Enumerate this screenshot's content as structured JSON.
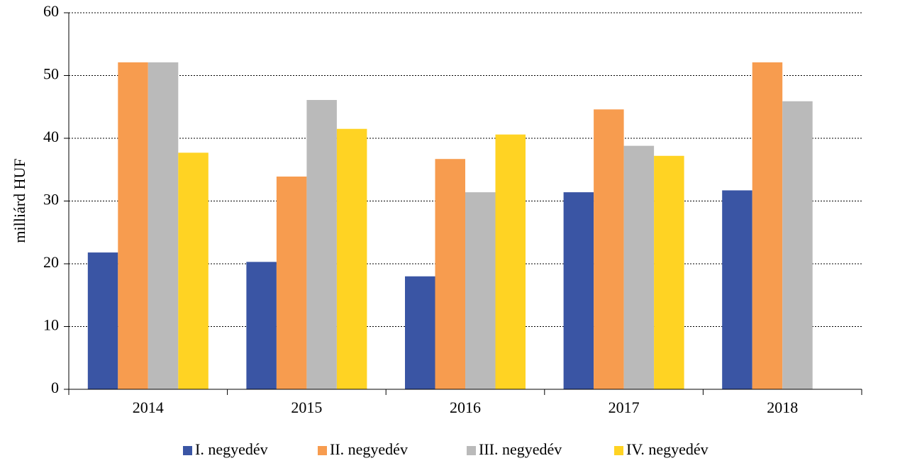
{
  "chart_data": {
    "type": "bar",
    "y_label": "milliárd HUF",
    "categories": [
      "2014",
      "2015",
      "2016",
      "2017",
      "2018"
    ],
    "series": [
      {
        "name": "I. negyedév",
        "color": "#3a55a4",
        "values": [
          21.8,
          20.3,
          18.0,
          31.4,
          31.7
        ]
      },
      {
        "name": "II. negyedév",
        "color": "#f79c4f",
        "values": [
          52.1,
          33.9,
          36.7,
          44.6,
          52.1
        ]
      },
      {
        "name": "III. negyedév",
        "color": "#bababa",
        "values": [
          52.1,
          46.1,
          31.4,
          38.8,
          45.9
        ]
      },
      {
        "name": "IV. negyedév",
        "color": "#ffd323",
        "values": [
          37.7,
          41.5,
          40.6,
          37.2,
          null
        ]
      }
    ],
    "ylim": [
      0,
      60
    ],
    "yticks": [
      0,
      10,
      20,
      30,
      40,
      50,
      60
    ],
    "grid": true,
    "legend": "bottom"
  }
}
